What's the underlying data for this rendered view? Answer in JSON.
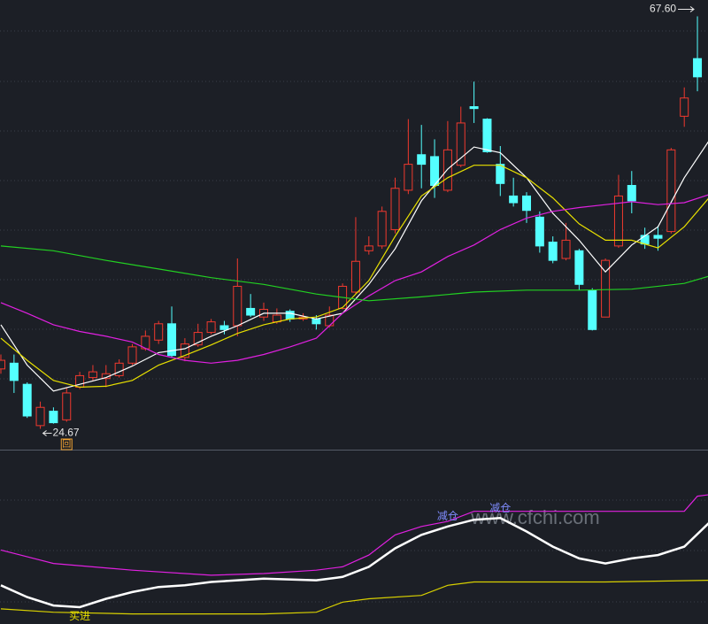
{
  "chart_data": [
    {
      "type": "candlestick",
      "ylim": [
        22.5,
        69.3
      ],
      "up_color": "#f0392e",
      "down_color": "#54ffff",
      "open": [
        30.9,
        31.5,
        29.3,
        25.0,
        26.5,
        25.6,
        29.0,
        30.0,
        29.9,
        30.2,
        31.5,
        33.0,
        33.9,
        35.6,
        32.1,
        33.4,
        34.7,
        35.4,
        35.4,
        37.2,
        36.3,
        35.8,
        36.9,
        36.1,
        36.1,
        35.4,
        37.2,
        38.9,
        43.2,
        43.7,
        45.4,
        49.5,
        53.2,
        53.0,
        49.5,
        52.1,
        58.2,
        56.9,
        52.2,
        48.9,
        48.9,
        46.7,
        44.1,
        42.4,
        43.2,
        39.1,
        36.3,
        43.7,
        50.0,
        44.8,
        44.8,
        45.2,
        57.2,
        63.2
      ],
      "high": [
        32.4,
        32.4,
        29.5,
        27.5,
        26.9,
        29.0,
        30.6,
        31.3,
        31.3,
        31.9,
        33.5,
        34.9,
        35.9,
        37.4,
        34.1,
        35.6,
        36.1,
        35.9,
        42.4,
        38.7,
        37.8,
        37.2,
        37.1,
        36.7,
        36.5,
        37.4,
        39.8,
        46.7,
        44.7,
        47.8,
        50.8,
        56.9,
        56.3,
        54.8,
        56.7,
        58.2,
        60.8,
        57.0,
        54.1,
        50.8,
        49.3,
        47.3,
        44.7,
        46.1,
        43.4,
        39.3,
        42.4,
        51.1,
        51.5,
        45.6,
        45.8,
        53.9,
        60.2,
        67.6
      ],
      "low": [
        30.4,
        28.4,
        25.8,
        24.67,
        25.2,
        25.4,
        28.8,
        29.7,
        29.0,
        30.0,
        31.3,
        32.8,
        33.5,
        32.1,
        31.7,
        33.2,
        34.5,
        34.5,
        34.3,
        36.3,
        35.9,
        35.6,
        35.8,
        35.9,
        35.0,
        35.2,
        37.1,
        38.7,
        42.8,
        43.4,
        45.0,
        49.1,
        49.7,
        48.7,
        49.3,
        51.9,
        56.5,
        53.4,
        48.9,
        47.8,
        46.1,
        43.0,
        41.9,
        42.2,
        39.1,
        34.9,
        36.3,
        43.5,
        47.1,
        43.4,
        43.2,
        45.0,
        56.1,
        59.8
      ],
      "close": [
        31.8,
        29.7,
        26.0,
        26.9,
        25.3,
        28.4,
        30.2,
        30.6,
        30.4,
        31.5,
        33.2,
        34.3,
        35.6,
        32.3,
        33.5,
        34.7,
        35.8,
        35.0,
        39.5,
        36.5,
        37.1,
        36.5,
        36.1,
        36.3,
        35.6,
        36.5,
        39.5,
        42.1,
        43.7,
        47.3,
        49.7,
        52.2,
        52.2,
        50.0,
        53.7,
        56.5,
        58.0,
        53.5,
        50.2,
        48.2,
        47.4,
        43.7,
        42.2,
        44.3,
        39.7,
        35.0,
        42.2,
        48.9,
        48.4,
        43.9,
        44.5,
        53.7,
        59.1,
        61.3
      ],
      "series": [
        {
          "color": "#ffffff",
          "x": [
            0,
            2,
            4,
            6,
            8,
            10,
            12,
            14,
            16,
            18,
            20,
            22,
            24,
            26,
            28,
            30,
            32,
            34,
            36,
            38,
            40,
            42,
            44,
            46,
            48,
            50,
            52,
            54
          ],
          "values": [
            35.5,
            31.3,
            28.6,
            29.3,
            30.0,
            31.2,
            32.6,
            33.0,
            34.3,
            35.4,
            36.7,
            36.7,
            36.1,
            36.7,
            39.7,
            43.4,
            48.4,
            51.7,
            54.0,
            53.4,
            50.8,
            47.1,
            44.3,
            41.0,
            43.8,
            45.7,
            50.8,
            54.9
          ]
        },
        {
          "color": "#e8e000",
          "x": [
            0,
            2,
            4,
            6,
            8,
            10,
            12,
            14,
            16,
            18,
            20,
            22,
            24,
            26,
            28,
            30,
            32,
            34,
            36,
            38,
            40,
            42,
            44,
            46,
            48,
            50,
            52,
            54
          ],
          "values": [
            34.1,
            31.8,
            29.7,
            29.0,
            29.1,
            29.7,
            31.3,
            32.3,
            33.4,
            34.6,
            35.5,
            36.1,
            36.3,
            37.3,
            40.1,
            44.7,
            48.9,
            50.8,
            52.1,
            52.1,
            50.8,
            48.7,
            46.0,
            44.3,
            44.3,
            43.5,
            45.7,
            48.9
          ]
        },
        {
          "color": "#e020e0",
          "x": [
            0,
            2,
            4,
            6,
            8,
            10,
            12,
            14,
            16,
            18,
            20,
            22,
            24,
            26,
            28,
            30,
            32,
            34,
            36,
            38,
            40,
            42,
            44,
            46,
            48,
            50,
            52,
            54
          ],
          "values": [
            37.8,
            36.7,
            35.5,
            34.8,
            34.3,
            33.7,
            32.4,
            31.8,
            31.5,
            31.8,
            32.4,
            33.2,
            34.1,
            36.7,
            38.5,
            40.1,
            41.0,
            42.6,
            43.8,
            45.4,
            46.6,
            47.3,
            47.7,
            48.0,
            48.3,
            48.0,
            48.2,
            49.1
          ]
        },
        {
          "color": "#22d022",
          "x": [
            0,
            4,
            8,
            12,
            16,
            20,
            24,
            28,
            32,
            36,
            40,
            44,
            48,
            52,
            54
          ],
          "values": [
            43.7,
            43.2,
            42.2,
            41.3,
            40.4,
            39.7,
            38.7,
            38.0,
            38.4,
            38.9,
            39.1,
            39.1,
            39.2,
            39.8,
            40.6
          ]
        }
      ],
      "max_label": "67.60",
      "min_label": "24.67",
      "marker_text": "回"
    },
    {
      "type": "line",
      "ylim": [
        0,
        100
      ],
      "series": [
        {
          "color": "#e020e0",
          "x": [
            0,
            4,
            10,
            16,
            20,
            24,
            26,
            28,
            30,
            32,
            34,
            36,
            40,
            44,
            48,
            52,
            53,
            54
          ],
          "values": [
            44,
            36,
            32,
            29,
            30,
            32,
            34,
            41,
            53,
            58,
            61,
            67,
            67,
            67,
            67,
            67,
            76,
            77
          ]
        },
        {
          "color": "#ffffff",
          "x": [
            0,
            2,
            4,
            6,
            8,
            10,
            12,
            14,
            16,
            18,
            20,
            24,
            26,
            28,
            30,
            32,
            34,
            36,
            38,
            40,
            42,
            44,
            46,
            48,
            50,
            52,
            54
          ],
          "values": [
            23,
            16,
            11,
            10,
            15,
            19,
            22,
            23,
            25,
            26,
            27,
            26,
            28,
            34,
            45,
            53,
            58,
            62,
            63,
            55,
            46,
            39,
            36,
            39,
            41,
            46,
            61
          ]
        },
        {
          "color": "#d8d000",
          "x": [
            0,
            4,
            10,
            20,
            24,
            26,
            28,
            32,
            34,
            36,
            44,
            46,
            54
          ],
          "values": [
            9,
            7,
            6,
            6,
            7,
            13,
            15,
            17,
            23,
            25,
            25,
            25,
            26
          ]
        }
      ],
      "annotations": [
        {
          "text": "买进",
          "x": 6,
          "color": "#e8e000"
        },
        {
          "text": "减仓",
          "x": 34,
          "color": "#7f8cff"
        },
        {
          "text": "减仓",
          "x": 38,
          "color": "#7f8cff"
        }
      ],
      "watermark": "www.cfchi.com"
    }
  ]
}
